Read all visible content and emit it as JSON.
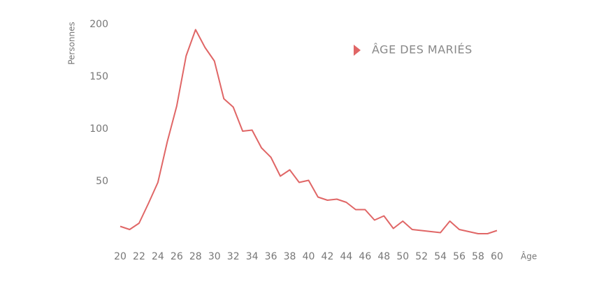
{
  "chart_data": {
    "type": "line",
    "x_label": "Âge",
    "y_label": "Personnes",
    "x": [
      20,
      21,
      22,
      23,
      24,
      25,
      26,
      27,
      28,
      29,
      30,
      31,
      32,
      33,
      34,
      35,
      36,
      37,
      38,
      39,
      40,
      41,
      42,
      43,
      44,
      45,
      46,
      47,
      48,
      49,
      50,
      51,
      52,
      53,
      54,
      55,
      56,
      57,
      58,
      59,
      60
    ],
    "series": [
      {
        "name": "ÂGE DES MARIÉS",
        "color": "#e06666",
        "values": [
          7,
          4,
          10,
          29,
          49,
          88,
          122,
          170,
          195,
          178,
          165,
          129,
          121,
          98,
          99,
          82,
          73,
          55,
          61,
          49,
          51,
          35,
          32,
          33,
          30,
          23,
          23,
          13,
          17,
          5,
          12,
          4,
          3,
          2,
          1,
          12,
          4,
          2,
          0,
          0,
          3
        ]
      }
    ],
    "xlim": [
      20,
      60
    ],
    "xticks": [
      20,
      22,
      24,
      26,
      28,
      30,
      32,
      34,
      36,
      38,
      40,
      42,
      44,
      46,
      48,
      50,
      52,
      54,
      56,
      58,
      60
    ],
    "ylim": [
      0,
      200
    ],
    "yticks": [
      50,
      100,
      150,
      200
    ],
    "legend": "top-right",
    "grid": false
  }
}
